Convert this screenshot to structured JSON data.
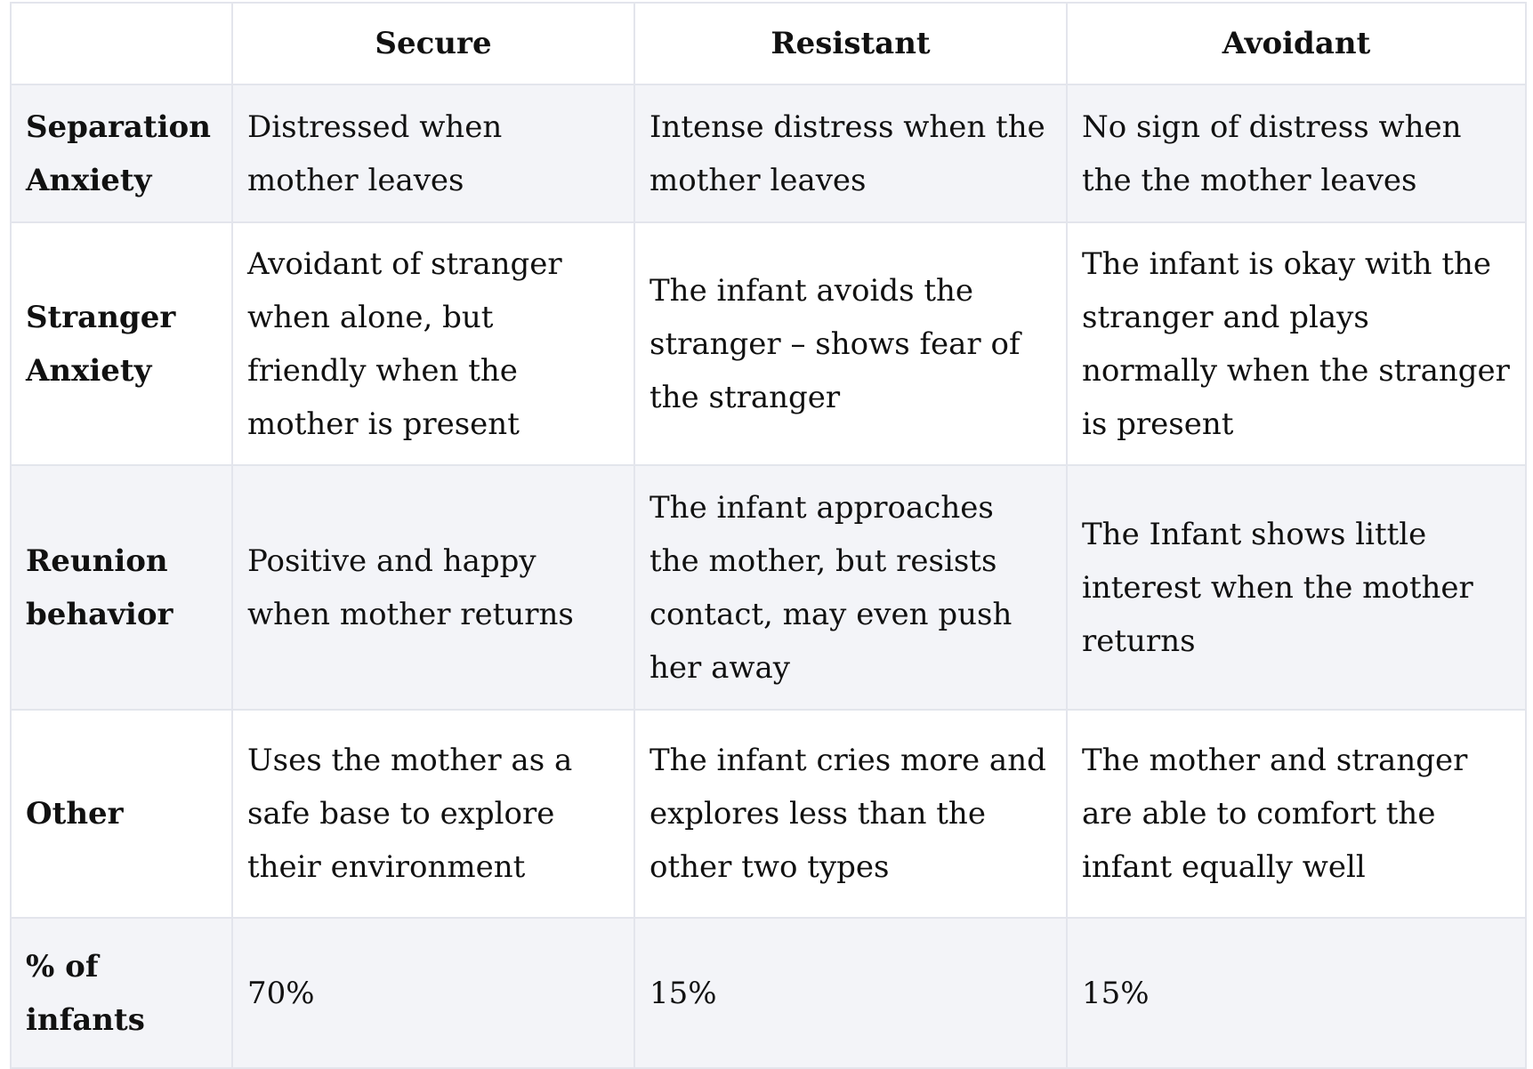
{
  "table": {
    "header": [
      "",
      "Secure",
      "Resistant",
      "Avoidant"
    ],
    "rows": [
      [
        "Separation Anxiety",
        "Distressed when mother leaves",
        "Intense distress when the mother leaves",
        "No sign of distress when the the mother leaves"
      ],
      [
        "Stranger Anxiety",
        "Avoidant of stranger when alone, but friendly when the mother is present",
        "The infant avoids the stranger – shows fear of the stranger",
        "The infant is okay with the stranger and plays normally when the stranger is present"
      ],
      [
        "Reunion behavior",
        "Positive and happy when mother returns",
        "The infant approaches the mother, but resists contact, may even push her away",
        "The Infant shows little interest when the mother returns"
      ],
      [
        "Other",
        "Uses the mother as a safe base to explore their environment",
        "The infant cries more and explores less than the other two types",
        "The mother and stranger are able to comfort the infant equally well"
      ],
      [
        "% of infants",
        "70%",
        "15%",
        "15%"
      ]
    ]
  }
}
